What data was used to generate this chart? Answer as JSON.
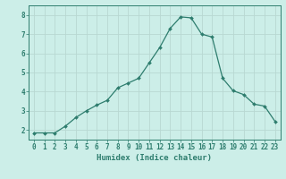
{
  "x": [
    0,
    1,
    2,
    3,
    4,
    5,
    6,
    7,
    8,
    9,
    10,
    11,
    12,
    13,
    14,
    15,
    16,
    17,
    18,
    19,
    20,
    21,
    22,
    23
  ],
  "y": [
    1.85,
    1.85,
    1.85,
    2.2,
    2.65,
    3.0,
    3.3,
    3.55,
    4.2,
    4.45,
    4.7,
    5.5,
    6.3,
    7.3,
    7.9,
    7.85,
    7.0,
    6.85,
    4.7,
    4.05,
    3.85,
    3.35,
    3.25,
    2.45
  ],
  "line_color": "#2e7d6e",
  "marker": "D",
  "marker_size": 2.0,
  "bg_color": "#cceee8",
  "grid_color": "#b8d8d2",
  "axis_color": "#2e7d6e",
  "xlabel": "Humidex (Indice chaleur)",
  "xlim": [
    -0.5,
    23.5
  ],
  "ylim": [
    1.5,
    8.5
  ],
  "yticks": [
    2,
    3,
    4,
    5,
    6,
    7,
    8
  ],
  "xtick_labels": [
    "0",
    "1",
    "2",
    "3",
    "4",
    "5",
    "6",
    "7",
    "8",
    "9",
    "10",
    "11",
    "12",
    "13",
    "14",
    "15",
    "16",
    "17",
    "18",
    "19",
    "20",
    "21",
    "22",
    "23"
  ],
  "xlabel_fontsize": 6.5,
  "tick_fontsize": 5.5
}
